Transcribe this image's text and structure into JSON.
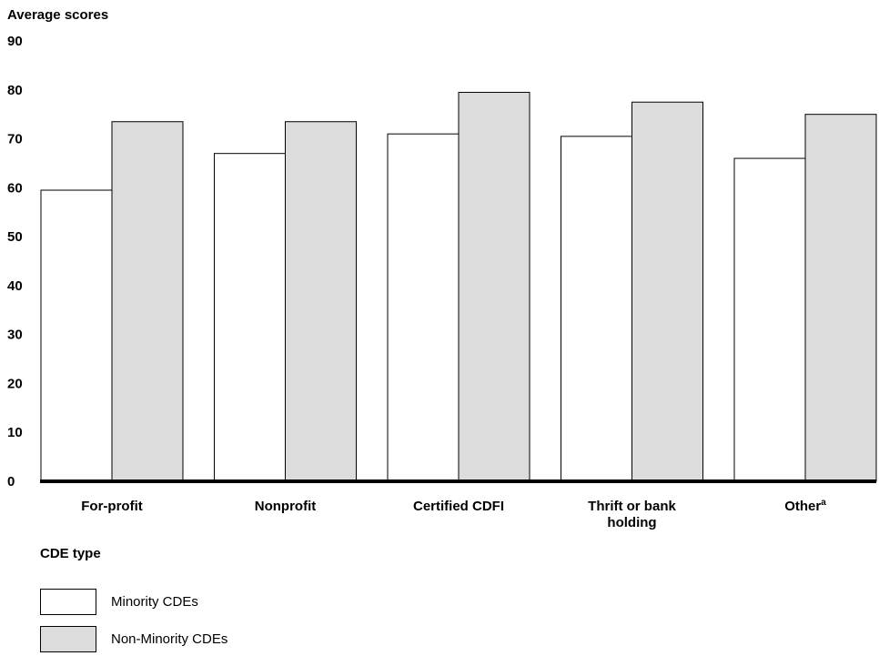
{
  "chart_data": {
    "type": "bar",
    "ylabel": "Average scores",
    "xlabel": "CDE type",
    "ylim": [
      0,
      90
    ],
    "yticks": [
      0,
      10,
      20,
      30,
      40,
      50,
      60,
      70,
      80,
      90
    ],
    "categories": [
      {
        "lines": [
          "For-profit"
        ],
        "sup": ""
      },
      {
        "lines": [
          "Nonprofit"
        ],
        "sup": ""
      },
      {
        "lines": [
          "Certified CDFI"
        ],
        "sup": ""
      },
      {
        "lines": [
          "Thrift or bank",
          "holding"
        ],
        "sup": ""
      },
      {
        "lines": [
          "Other"
        ],
        "sup": "a"
      }
    ],
    "series": [
      {
        "name": "Minority CDEs",
        "color": "#ffffff",
        "values": [
          59.5,
          67,
          71,
          70.5,
          66
        ]
      },
      {
        "name": "Non-Minority CDEs",
        "color": "#dcdcdc",
        "values": [
          73.5,
          73.5,
          79.5,
          77.5,
          75
        ]
      }
    ],
    "grid": false,
    "legend_position": "bottom-left"
  }
}
